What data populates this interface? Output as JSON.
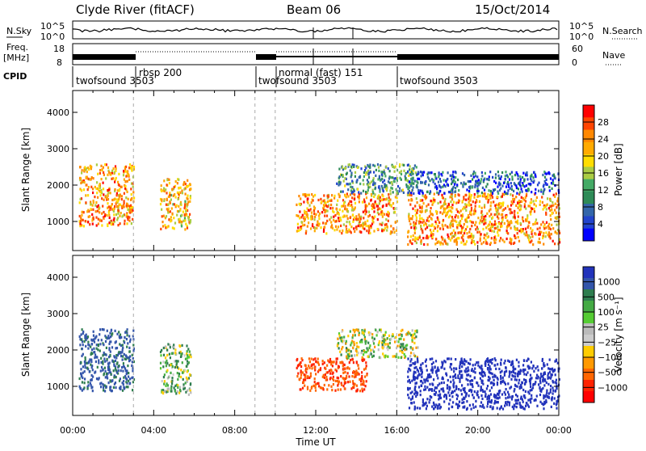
{
  "header": {
    "station": "Clyde River (fitACF)",
    "beam": "Beam 06",
    "date": "15/Oct/2014"
  },
  "noise_panel": {
    "left_label": "N.Sky",
    "right_label": "N.Search",
    "left_ticks": [
      "10^5",
      "10^0"
    ],
    "right_ticks": [
      "10^5",
      "10^0"
    ]
  },
  "freq_panel": {
    "left_label_1": "Freq.",
    "left_label_2": "[MHz]",
    "right_label": "Nave",
    "left_ticks": [
      "18",
      "8"
    ],
    "right_ticks": [
      "60",
      "0"
    ]
  },
  "cpid_panel": {
    "label": "CPID",
    "segments": [
      {
        "name": "twofsound",
        "code": "3503",
        "start_h": 0.0,
        "end_h": 3.0
      },
      {
        "name": "rbsp",
        "code": "200",
        "start_h": 3.0,
        "end_h": 9.0
      },
      {
        "name": "twofsound",
        "code": "3503",
        "start_h": 9.0,
        "end_h": 10.0
      },
      {
        "name": "normal (fast)",
        "code": "151",
        "start_h": 10.0,
        "end_h": 16.0
      },
      {
        "name": "twofsound",
        "code": "3503",
        "start_h": 16.0,
        "end_h": 24.0
      }
    ]
  },
  "power_panel": {
    "ylabel": "Slant Range [km]",
    "colorbar_label": "Power [dB]",
    "colorbar_ticks": [
      "28",
      "24",
      "20",
      "16",
      "12",
      "8",
      "4"
    ],
    "colorbar_colors": [
      "#ff0000",
      "#ff4400",
      "#ff8800",
      "#ffaa00",
      "#ffdd00",
      "#aacc44",
      "#44aa66",
      "#2e8b57",
      "#3366aa",
      "#2244cc",
      "#0000ff"
    ]
  },
  "velocity_panel": {
    "ylabel": "Slant Range [km]",
    "colorbar_label": "Velocity [m s⁻¹]",
    "colorbar_ticks": [
      "1000",
      "500",
      "100",
      "25",
      "−25",
      "−100",
      "−500",
      "−1000"
    ],
    "colorbar_colors": [
      "#2233bb",
      "#3355aa",
      "#2e7d4f",
      "#44aa44",
      "#55cc33",
      "#bbbbbb",
      "#cccccc",
      "#ffcc00",
      "#ff9900",
      "#ff6600",
      "#ff2200",
      "#ff0000"
    ]
  },
  "x_axis": {
    "label": "Time UT",
    "ticks": [
      "00:00",
      "04:00",
      "08:00",
      "12:00",
      "16:00",
      "20:00",
      "00:00"
    ]
  },
  "chart_data": {
    "type": "heatmap",
    "title": "Clyde River (fitACF)",
    "subtitle": "Beam 06  15/Oct/2014",
    "xlabel": "Time UT",
    "ylabel": "Slant Range [km]",
    "xlim": [
      0,
      24
    ],
    "ylim": [
      200,
      4600
    ],
    "y_ticks": [
      1000,
      2000,
      3000,
      4000
    ],
    "power_echo_regions": [
      {
        "t0": 0.3,
        "t1": 3.0,
        "r0": 900,
        "r1": 2600,
        "power_db": 24
      },
      {
        "t0": 4.3,
        "t1": 5.8,
        "r0": 800,
        "r1": 2200,
        "power_db": 22
      },
      {
        "t0": 11.0,
        "t1": 16.0,
        "r0": 700,
        "r1": 1800,
        "power_db": 24
      },
      {
        "t0": 13.0,
        "t1": 17.0,
        "r0": 1800,
        "r1": 2600,
        "power_db": 12
      },
      {
        "t0": 16.5,
        "t1": 24.0,
        "r0": 400,
        "r1": 1800,
        "power_db": 24
      },
      {
        "t0": 16.5,
        "t1": 24.0,
        "r0": 1800,
        "r1": 2400,
        "power_db": 8
      }
    ],
    "velocity_echo_regions": [
      {
        "t0": 0.3,
        "t1": 3.0,
        "r0": 900,
        "r1": 2600,
        "velocity": 500
      },
      {
        "t0": 4.3,
        "t1": 5.8,
        "r0": 800,
        "r1": 2200,
        "velocity": 100
      },
      {
        "t0": 11.0,
        "t1": 14.5,
        "r0": 900,
        "r1": 1800,
        "velocity": -500
      },
      {
        "t0": 13.0,
        "t1": 17.0,
        "r0": 1800,
        "r1": 2600,
        "velocity": 0
      },
      {
        "t0": 16.5,
        "t1": 24.0,
        "r0": 400,
        "r1": 1800,
        "velocity": 1000
      }
    ]
  }
}
